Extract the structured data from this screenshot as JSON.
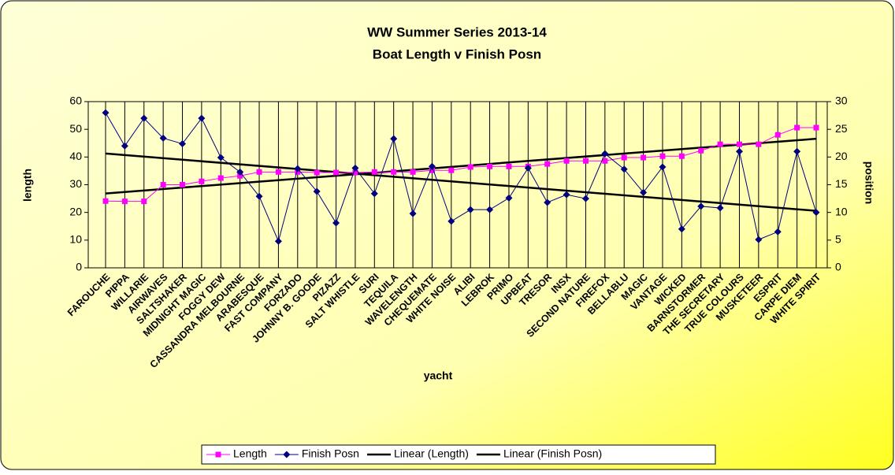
{
  "chart_data": {
    "type": "line",
    "title": "WW Summer Series 2013-14",
    "subtitle": "Boat Length v Finish Posn",
    "x_label": "yacht",
    "y_label": "length",
    "y2_label": "position",
    "categories": [
      "FAROUCHE",
      "PIPPA",
      "WILLARIE",
      "AIRWAVES",
      "SALTSHAKER",
      "MIDNIGHT MAGIC",
      "FOGGY DEW",
      "CASSANDRA MELBOURNE",
      "ARABESQUE",
      "FAST COMPANY",
      "FORZADO",
      "JOHNNY B. GOODE",
      "PIZAZZ",
      "SALT WHISTLE",
      "SURI",
      "TEQUILA",
      "WAVELENGTH",
      "CHEQUEMATE",
      "WHITE NOISE",
      "ALIBI",
      "LEBROK",
      "PRIMO",
      "UPBEAT",
      "TRESOR",
      "INSX",
      "SECOND NATURE",
      "FIREFOX",
      "BELLABLU",
      "MAGIC",
      "VANTAGE",
      "WICKED",
      "BARNSTORMER",
      "THE SECRETARY",
      "TRUE COLOURS",
      "MUSKETEER",
      "ESPRIT",
      "CARPE DIEM",
      "WHITE SPIRIT"
    ],
    "series": [
      {
        "name": "Length",
        "color": "#ff00ff",
        "marker": "square",
        "values": [
          24.1,
          24,
          24,
          30,
          30,
          31.2,
          32.4,
          33.2,
          34.6,
          34.6,
          34.6,
          34.4,
          34.4,
          34.4,
          34.6,
          34.6,
          34.6,
          35.2,
          35.2,
          36.4,
          36.6,
          36.6,
          36.6,
          37.5,
          38.6,
          38.6,
          38.6,
          39.8,
          39.8,
          40.3,
          40.3,
          42.3,
          44.6,
          44.6,
          44.6,
          48,
          50.6,
          50.6
        ]
      },
      {
        "name": "Finish Posn",
        "color": "#000080",
        "marker": "diamond",
        "axis": "y2",
        "values": [
          28,
          22,
          27,
          23.4,
          22.4,
          27,
          19.9,
          17.3,
          12.9,
          4.8,
          17.9,
          13.8,
          8.1,
          18,
          13.4,
          23.3,
          9.8,
          18.3,
          8.4,
          10.5,
          10.5,
          12.6,
          18,
          11.8,
          13.2,
          12.5,
          20.6,
          17.8,
          13.6,
          18.2,
          7,
          11.1,
          10.8,
          21,
          5.1,
          6.5,
          21,
          10
        ]
      }
    ],
    "trendlines": [
      {
        "name": "Linear (Length)",
        "color": "#000000",
        "series": 0
      },
      {
        "name": "Linear (Finish Posn)",
        "color": "#000000",
        "series": 1
      }
    ],
    "ylim": [
      0,
      60
    ],
    "yticks": [
      0,
      10,
      20,
      30,
      40,
      50,
      60
    ],
    "y2lim": [
      0,
      30
    ],
    "y2ticks": [
      0,
      5,
      10,
      15,
      20,
      25,
      30
    ],
    "x_grid": true,
    "legend": "bottom"
  }
}
